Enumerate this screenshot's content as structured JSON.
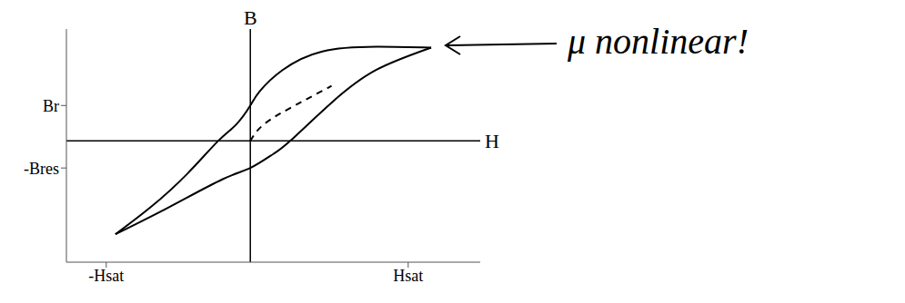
{
  "chart_data": {
    "type": "line",
    "x_label": "H",
    "y_label": "B",
    "annotation": "μ nonlinear!",
    "xlim": [
      -1.2,
      1.5
    ],
    "ylim": [
      -1.3,
      1.2
    ],
    "xticks": [
      {
        "value": -0.94,
        "label": "-Hsat"
      },
      {
        "value": 1.03,
        "label": "Hsat"
      }
    ],
    "yticks": [
      {
        "value": 0.38,
        "label": "Br"
      },
      {
        "value": -0.29,
        "label": "-Bres"
      }
    ],
    "series": [
      {
        "color": "#000000",
        "line_style": "solid",
        "x": [
          1.18,
          0.82,
          0.47,
          0.21,
          0.06,
          0,
          -0.09,
          -0.21,
          -0.41,
          -0.65,
          -0.88
        ],
        "values": [
          1.0,
          1.01,
          0.96,
          0.76,
          0.53,
          0.38,
          0.18,
          0,
          -0.35,
          -0.71,
          -1.0
        ]
      },
      {
        "color": "#000000",
        "line_style": "solid",
        "x": [
          -0.88,
          -0.53,
          -0.18,
          0,
          0.15,
          0.26,
          0.53,
          0.82,
          1.18
        ],
        "values": [
          -1.0,
          -0.71,
          -0.41,
          -0.29,
          -0.14,
          0,
          0.41,
          0.76,
          1.0
        ]
      },
      {
        "color": "#000000",
        "line_style": "dashed",
        "x": [
          0,
          0.09,
          0.29,
          0.53
        ],
        "values": [
          0,
          0.18,
          0.38,
          0.59
        ]
      }
    ]
  }
}
